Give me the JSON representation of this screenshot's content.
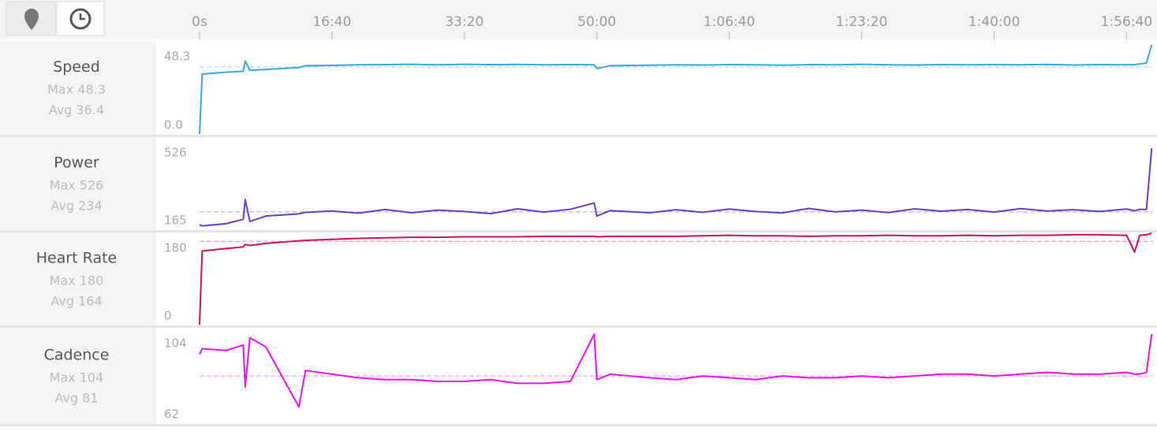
{
  "time_axis": {
    "xlim": [
      0,
      7200
    ],
    "xticks": [
      {
        "value": 0,
        "label": "0s"
      },
      {
        "value": 1000,
        "label": "16:40"
      },
      {
        "value": 2000,
        "label": "33:20"
      },
      {
        "value": 3000,
        "label": "50:00"
      },
      {
        "value": 4000,
        "label": "1:06:40"
      },
      {
        "value": 5000,
        "label": "1:23:20"
      },
      {
        "value": 6000,
        "label": "1:40:00"
      },
      {
        "value": 7000,
        "label": "1:56:40"
      }
    ]
  },
  "chart_data": [
    {
      "type": "line",
      "title": "Speed",
      "color": "#3aa8d8",
      "max": {
        "value": 48.3,
        "label": "Max 48.3"
      },
      "avg": {
        "value": 36.4,
        "label": "Avg 36.4"
      },
      "ylim": [
        0,
        48.3
      ],
      "yticks": [
        {
          "value": 0,
          "label": "0.0"
        },
        48.3
      ],
      "x": [
        0,
        20,
        200,
        330,
        345,
        380,
        500,
        750,
        800,
        1000,
        1200,
        1400,
        1600,
        1800,
        2000,
        2200,
        2400,
        2600,
        2800,
        2980,
        3000,
        3100,
        3400,
        3600,
        3800,
        4000,
        4200,
        4400,
        4600,
        4800,
        5000,
        5200,
        5400,
        5600,
        5800,
        6000,
        6200,
        6400,
        6600,
        6800,
        7000,
        7060,
        7100,
        7150,
        7190
      ],
      "values": [
        0,
        32.5,
        33.5,
        34,
        39.5,
        34.5,
        35,
        36,
        37,
        37.2,
        37.5,
        37.6,
        37.8,
        37.5,
        37.8,
        37.6,
        37.7,
        37.5,
        37.6,
        37.5,
        35.5,
        37,
        37.3,
        37.5,
        37.4,
        37.6,
        37.5,
        37.3,
        37.6,
        37.5,
        37.8,
        37.5,
        37.4,
        37.6,
        37.5,
        37.6,
        37.5,
        37.7,
        37.4,
        37.6,
        37.5,
        37.6,
        38,
        38.5,
        48.3
      ]
    },
    {
      "type": "line",
      "title": "Power",
      "color": "#6a3dc8",
      "max": {
        "value": 526,
        "label": "Max 526"
      },
      "avg": {
        "value": 234,
        "label": "Avg 234"
      },
      "ylim": [
        165,
        526
      ],
      "yticks": [
        165,
        526
      ],
      "x": [
        0,
        20,
        200,
        330,
        345,
        380,
        500,
        750,
        800,
        1000,
        1200,
        1400,
        1600,
        1800,
        2000,
        2200,
        2400,
        2600,
        2800,
        2980,
        3000,
        3100,
        3400,
        3600,
        3800,
        4000,
        4200,
        4400,
        4600,
        4800,
        5000,
        5200,
        5400,
        5600,
        5800,
        6000,
        6200,
        6400,
        6600,
        6800,
        7000,
        7060,
        7100,
        7150,
        7190
      ],
      "values": [
        175,
        170,
        180,
        200,
        291,
        190,
        215,
        225,
        232,
        238,
        228,
        245,
        230,
        242,
        236,
        226,
        248,
        233,
        246,
        275,
        215,
        240,
        230,
        244,
        232,
        247,
        236,
        229,
        250,
        234,
        242,
        231,
        248,
        237,
        245,
        233,
        249,
        238,
        244,
        236,
        247,
        239,
        246,
        245,
        526
      ]
    },
    {
      "type": "line",
      "title": "Heart Rate",
      "color": "#d0105a",
      "max": {
        "value": 180,
        "label": "Max 180"
      },
      "avg": {
        "value": 164,
        "label": "Avg 164"
      },
      "ylim": [
        0,
        180
      ],
      "yticks": [
        0,
        180
      ],
      "x": [
        0,
        20,
        200,
        330,
        345,
        380,
        500,
        750,
        800,
        1000,
        1200,
        1400,
        1600,
        1800,
        2000,
        2200,
        2400,
        2600,
        2800,
        2980,
        3000,
        3100,
        3400,
        3600,
        3800,
        4000,
        4200,
        4400,
        4600,
        4800,
        5000,
        5200,
        5400,
        5600,
        5800,
        6000,
        6200,
        6400,
        6600,
        6800,
        7000,
        7060,
        7100,
        7150,
        7190
      ],
      "values": [
        0,
        145,
        150,
        153,
        158,
        156,
        160,
        165,
        166,
        168,
        170,
        171,
        172,
        172,
        173,
        173,
        173,
        174,
        174,
        174,
        173,
        174,
        174,
        174,
        175,
        176,
        175,
        175,
        174,
        175,
        175,
        176,
        175,
        175,
        176,
        175,
        176,
        176,
        177,
        177,
        176,
        143,
        176,
        177,
        180
      ]
    },
    {
      "type": "line",
      "title": "Cadence",
      "color": "#ee10ee",
      "max": {
        "value": 104,
        "label": "Max 104"
      },
      "avg": {
        "value": 81,
        "label": "Avg 81"
      },
      "ylim": [
        62,
        104
      ],
      "yticks": [
        62,
        104
      ],
      "x": [
        0,
        20,
        200,
        330,
        345,
        380,
        500,
        750,
        800,
        1000,
        1200,
        1400,
        1600,
        1800,
        2000,
        2200,
        2400,
        2600,
        2800,
        2980,
        3000,
        3100,
        3400,
        3600,
        3800,
        4000,
        4200,
        4400,
        4600,
        4800,
        5000,
        5200,
        5400,
        5600,
        5800,
        6000,
        6200,
        6400,
        6600,
        6800,
        7000,
        7060,
        7100,
        7150,
        7190
      ],
      "values": [
        93,
        96,
        95,
        98,
        75,
        102,
        97,
        64,
        84,
        82,
        80,
        79,
        79,
        78,
        78,
        79,
        77,
        77,
        78,
        104,
        79,
        82,
        80,
        79,
        81,
        80,
        79,
        81,
        80,
        80,
        81,
        80,
        81,
        82,
        82,
        81,
        82,
        83,
        82,
        82,
        83,
        82,
        82,
        83,
        104
      ]
    }
  ]
}
